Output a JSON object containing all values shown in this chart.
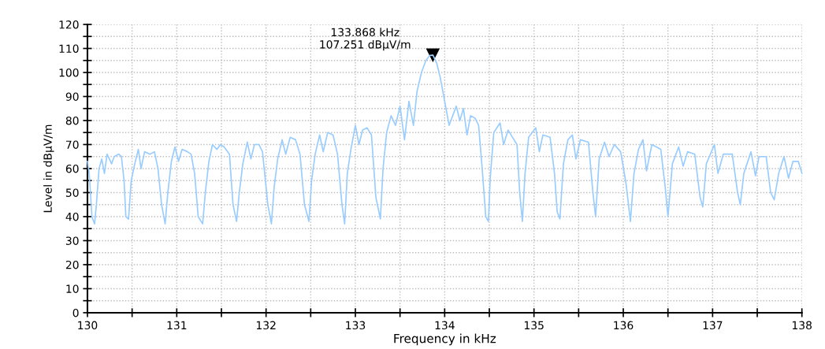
{
  "chart_data": {
    "type": "line",
    "xlabel": "Frequency in kHz",
    "ylabel": "Level in dBµV/m",
    "xlim": [
      130,
      138
    ],
    "ylim": [
      0,
      120
    ],
    "xticks": [
      130,
      {
        "value": 130.5,
        "label": null
      },
      131,
      {
        "value": 131.5,
        "label": null
      },
      132,
      {
        "value": 132.5,
        "label": null
      },
      133,
      {
        "value": 133.5,
        "label": null
      },
      134,
      {
        "value": 134.5,
        "label": null
      },
      135,
      {
        "value": 135.5,
        "label": null
      },
      136,
      {
        "value": 136.5,
        "label": null
      },
      137,
      {
        "value": 137.5,
        "label": null
      },
      138
    ],
    "yticks": [
      0,
      {
        "value": 5,
        "label": null
      },
      10,
      {
        "value": 15,
        "label": null
      },
      20,
      {
        "value": 25,
        "label": null
      },
      30,
      {
        "value": 35,
        "label": null
      },
      40,
      {
        "value": 45,
        "label": null
      },
      50,
      {
        "value": 55,
        "label": null
      },
      60,
      {
        "value": 65,
        "label": null
      },
      70,
      {
        "value": 75,
        "label": null
      },
      80,
      {
        "value": 85,
        "label": null
      },
      90,
      {
        "value": 95,
        "label": null
      },
      100,
      {
        "value": 105,
        "label": null
      },
      110,
      {
        "value": 115,
        "label": null
      },
      120
    ],
    "grid": true,
    "legend": false,
    "marker": "none",
    "line_style": "solid",
    "annotations": [
      {
        "text": "133.868 kHz\n107.251 dBµV/m",
        "x": 133.868,
        "y": 107.251
      }
    ],
    "series": [
      {
        "color": "#99ccff",
        "x": [
          130.0,
          130.02,
          130.05,
          130.08,
          130.1,
          130.13,
          130.16,
          130.19,
          130.22,
          130.27,
          130.3,
          130.35,
          130.38,
          130.41,
          130.43,
          130.46,
          130.49,
          130.53,
          130.57,
          130.6,
          130.64,
          130.7,
          130.75,
          130.79,
          130.83,
          130.87,
          130.9,
          130.94,
          130.98,
          131.02,
          131.06,
          131.12,
          131.16,
          131.2,
          131.24,
          131.29,
          131.32,
          131.36,
          131.4,
          131.45,
          131.49,
          131.53,
          131.59,
          131.63,
          131.67,
          131.7,
          131.74,
          131.79,
          131.83,
          131.87,
          131.92,
          131.96,
          132.02,
          132.06,
          132.09,
          132.13,
          132.18,
          132.22,
          132.27,
          132.33,
          132.38,
          132.43,
          132.48,
          132.51,
          132.55,
          132.6,
          132.64,
          132.69,
          132.75,
          132.8,
          132.85,
          132.88,
          132.91,
          132.95,
          133.0,
          133.04,
          133.08,
          133.13,
          133.18,
          133.23,
          133.28,
          133.31,
          133.35,
          133.4,
          133.45,
          133.5,
          133.55,
          133.6,
          133.65,
          133.69,
          133.74,
          133.79,
          133.83,
          133.868,
          133.91,
          133.95,
          133.98,
          134.02,
          134.05,
          134.09,
          134.13,
          134.17,
          134.21,
          134.25,
          134.29,
          134.34,
          134.38,
          134.42,
          134.46,
          134.49,
          134.51,
          134.55,
          134.62,
          134.66,
          134.71,
          134.76,
          134.81,
          134.84,
          134.87,
          134.9,
          134.94,
          135.02,
          135.06,
          135.1,
          135.18,
          135.23,
          135.26,
          135.29,
          135.33,
          135.38,
          135.43,
          135.47,
          135.52,
          135.61,
          135.66,
          135.69,
          135.73,
          135.79,
          135.84,
          135.9,
          135.97,
          136.03,
          136.08,
          136.12,
          136.17,
          136.22,
          136.26,
          136.32,
          136.42,
          136.47,
          136.5,
          136.55,
          136.62,
          136.67,
          136.72,
          136.8,
          136.86,
          136.89,
          136.93,
          137.02,
          137.06,
          137.12,
          137.22,
          137.28,
          137.31,
          137.35,
          137.43,
          137.48,
          137.52,
          137.6,
          137.65,
          137.69,
          137.74,
          137.8,
          137.85,
          137.9,
          137.96,
          138.0
        ],
        "values": [
          63,
          58,
          40,
          37,
          45,
          60,
          64,
          58,
          66,
          62,
          65,
          66,
          65,
          55,
          40,
          39,
          55,
          62,
          68,
          60,
          67,
          66,
          67,
          60,
          45,
          37,
          50,
          63,
          69,
          63,
          68,
          67,
          66,
          58,
          40,
          37,
          50,
          63,
          70,
          68,
          70,
          69,
          66,
          45,
          38,
          50,
          62,
          71,
          64,
          70,
          70,
          67,
          45,
          37,
          52,
          64,
          72,
          66,
          73,
          72,
          66,
          45,
          38,
          55,
          66,
          74,
          67,
          75,
          74,
          66,
          45,
          37,
          58,
          68,
          78,
          70,
          76,
          77,
          74,
          48,
          39,
          60,
          75,
          82,
          78,
          86,
          72,
          88,
          78,
          92,
          100,
          105,
          107,
          107.251,
          104,
          98,
          92,
          84,
          78,
          82,
          86,
          80,
          85,
          74,
          82,
          81,
          78,
          60,
          40,
          38,
          56,
          75,
          79,
          70,
          76,
          73,
          70,
          50,
          38,
          58,
          73,
          77,
          67,
          74,
          73,
          58,
          42,
          39,
          62,
          72,
          74,
          64,
          72,
          71,
          50,
          40,
          64,
          71,
          65,
          70,
          67,
          54,
          38,
          58,
          68,
          72,
          59,
          70,
          68,
          52,
          40,
          62,
          69,
          61,
          67,
          66,
          48,
          44,
          62,
          70,
          58,
          66,
          66,
          50,
          45,
          58,
          67,
          57,
          65,
          65,
          50,
          47,
          58,
          65,
          56,
          63,
          63,
          58
        ]
      }
    ]
  }
}
